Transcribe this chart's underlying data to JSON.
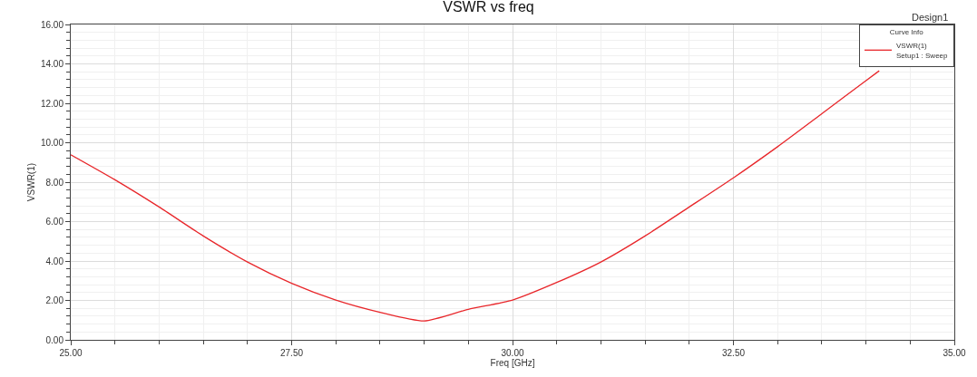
{
  "chart_data": {
    "type": "line",
    "title": "VSWR vs freq",
    "xlabel": "Freq [GHz]",
    "ylabel": "VSWR(1)",
    "legend_title": "Curve Info",
    "annotations": [
      "Design1"
    ],
    "series": [
      {
        "name": "VSWR(1)\nSetup1 : Sweep",
        "color": "#e8262a",
        "x": [
          25.0,
          25.5,
          26.0,
          26.5,
          27.0,
          27.5,
          28.0,
          28.5,
          29.0,
          29.5,
          30.0,
          30.5,
          31.0,
          31.5,
          32.0,
          32.5,
          33.0,
          33.5,
          34.0,
          34.15
        ],
        "values": [
          9.39,
          8.12,
          6.74,
          5.27,
          3.95,
          2.87,
          2.02,
          1.4,
          0.96,
          1.55,
          2.02,
          2.91,
          3.95,
          5.27,
          6.74,
          8.22,
          9.8,
          11.47,
          13.15,
          13.65
        ]
      }
    ],
    "xlim": [
      25,
      35
    ],
    "ylim": [
      0,
      16
    ],
    "xticks": [
      {
        "value": 25,
        "label": "25.00"
      },
      {
        "value": 27.5,
        "label": "27.50"
      },
      {
        "value": 30,
        "label": "30.00"
      },
      {
        "value": 32.5,
        "label": "32.50"
      },
      {
        "value": 35,
        "label": "35.00"
      }
    ],
    "yticks": [
      {
        "value": 0,
        "label": "0.00"
      },
      {
        "value": 2,
        "label": "2.00"
      },
      {
        "value": 4,
        "label": "4.00"
      },
      {
        "value": 6,
        "label": "6.00"
      },
      {
        "value": 8,
        "label": "8.00"
      },
      {
        "value": 10,
        "label": "10.00"
      },
      {
        "value": 12,
        "label": "12.00"
      },
      {
        "value": 14,
        "label": "14.00"
      },
      {
        "value": 16,
        "label": "16.00"
      }
    ],
    "grid": true,
    "legend": "top right",
    "marker": "none",
    "line_style": "solid"
  }
}
